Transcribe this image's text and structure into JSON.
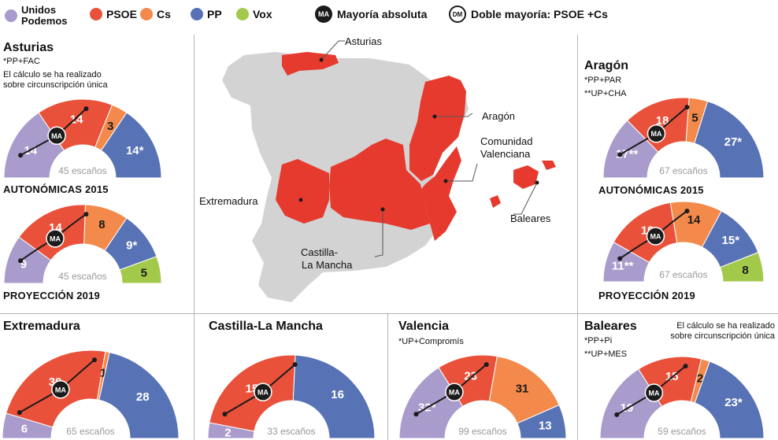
{
  "colors": {
    "up": "#a99bcc",
    "psoe": "#e9513a",
    "cs": "#f3894a",
    "pp": "#5873b5",
    "vox": "#a3c94b",
    "map_gray": "#d3d3d3",
    "map_red": "#e63a2e",
    "ma": "#1b1b1b"
  },
  "legend": {
    "items": [
      {
        "label": "Unidos\nPodemos",
        "color": "#a99bcc"
      },
      {
        "label": "PSOE",
        "color": "#e9513a"
      },
      {
        "label": "Cs",
        "color": "#f3894a"
      },
      {
        "label": "PP",
        "color": "#5873b5"
      },
      {
        "label": "Vox",
        "color": "#a3c94b"
      }
    ],
    "ma_badge": "MA",
    "ma_label": "Mayoría absoluta",
    "dm_badge": "DM",
    "dm_label": "Doble mayoría: PSOE +Cs"
  },
  "regions": {
    "asturias": {
      "title": "Asturias",
      "notes": [
        "*PP+FAC",
        "El cálculo se ha realizado",
        "sobre circunscripción única"
      ],
      "labels": [
        "AUTONÓMICAS 2015",
        "PROYECCIÓN 2019"
      ]
    },
    "aragon": {
      "title": "Aragón",
      "notes": [
        "*PP+PAR",
        "**UP+CHA"
      ],
      "labels": [
        "AUTONÓMICAS 2015",
        "PROYECCIÓN 2019"
      ]
    },
    "extremadura": {
      "title": "Extremadura"
    },
    "castilla": {
      "title": "Castilla-La Mancha"
    },
    "valencia": {
      "title": "Valencia",
      "notes": [
        "*UP+Compromís"
      ]
    },
    "baleares": {
      "title": "Baleares",
      "notes": [
        "*PP+Pi",
        "**UP+MES"
      ],
      "note_right": [
        "El cálculo se ha realizado",
        "sobre circunscripción única"
      ]
    }
  },
  "map_labels": {
    "asturias": "Asturias",
    "aragon": "Aragón",
    "valenciana": [
      "Comunidad",
      "Valenciana"
    ],
    "extremadura": "Extremadura",
    "baleares": "Baleares",
    "castilla": [
      "Castilla-",
      "La Mancha"
    ]
  },
  "chart_data": [
    {
      "type": "semicircle",
      "name": "Asturias Autonómicas 2015",
      "total_label": "45 escaños",
      "segments": [
        {
          "party": "UP",
          "value": 14,
          "label": "14"
        },
        {
          "party": "PSOE",
          "value": 14,
          "label": "14"
        },
        {
          "party": "Cs",
          "value": 3,
          "label": "3"
        },
        {
          "party": "PP",
          "value": 14,
          "label": "14*"
        }
      ],
      "ma": true
    },
    {
      "type": "semicircle",
      "name": "Asturias Proyección 2019",
      "total_label": "45 escaños",
      "segments": [
        {
          "party": "UP",
          "value": 9,
          "label": "9"
        },
        {
          "party": "PSOE",
          "value": 14,
          "label": "14"
        },
        {
          "party": "Cs",
          "value": 8,
          "label": "8"
        },
        {
          "party": "PP",
          "value": 9,
          "label": "9*"
        },
        {
          "party": "Vox",
          "value": 5,
          "label": "5"
        }
      ],
      "ma": true
    },
    {
      "type": "semicircle",
      "name": "Aragón Autonómicas 2015",
      "total_label": "67 escaños",
      "segments": [
        {
          "party": "UP",
          "value": 17,
          "label": "17**"
        },
        {
          "party": "PSOE",
          "value": 18,
          "label": "18"
        },
        {
          "party": "Cs",
          "value": 5,
          "label": "5"
        },
        {
          "party": "PP",
          "value": 27,
          "label": "27*"
        }
      ],
      "ma": true
    },
    {
      "type": "semicircle",
      "name": "Aragón Proyección 2019",
      "total_label": "67 escaños",
      "segments": [
        {
          "party": "UP",
          "value": 11,
          "label": "11**"
        },
        {
          "party": "PSOE",
          "value": 19,
          "label": "19"
        },
        {
          "party": "Cs",
          "value": 14,
          "label": "14"
        },
        {
          "party": "PP",
          "value": 15,
          "label": "15*"
        },
        {
          "party": "Vox",
          "value": 8,
          "label": "8"
        }
      ],
      "ma": true
    },
    {
      "type": "semicircle",
      "name": "Extremadura",
      "total_label": "65 escaños",
      "segments": [
        {
          "party": "UP",
          "value": 6,
          "label": "6"
        },
        {
          "party": "PSOE",
          "value": 30,
          "label": "30"
        },
        {
          "party": "Cs",
          "value": 1,
          "label": "1"
        },
        {
          "party": "PP",
          "value": 28,
          "label": "28"
        }
      ],
      "ma": true
    },
    {
      "type": "semicircle",
      "name": "Castilla-La Mancha",
      "total_label": "33 escaños",
      "segments": [
        {
          "party": "UP",
          "value": 2,
          "label": "2"
        },
        {
          "party": "PSOE",
          "value": 15,
          "label": "15"
        },
        {
          "party": "PP",
          "value": 16,
          "label": "16"
        }
      ],
      "ma": true
    },
    {
      "type": "semicircle",
      "name": "Valencia",
      "total_label": "99 escaños",
      "segments": [
        {
          "party": "UP",
          "value": 32,
          "label": "32*"
        },
        {
          "party": "PSOE",
          "value": 23,
          "label": "23"
        },
        {
          "party": "Cs",
          "value": 31,
          "label": "31"
        },
        {
          "party": "PP",
          "value": 13,
          "label": "13"
        }
      ],
      "ma": true
    },
    {
      "type": "semicircle",
      "name": "Baleares",
      "total_label": "59 escaños",
      "segments": [
        {
          "party": "UP",
          "value": 19,
          "label": "19"
        },
        {
          "party": "PSOE",
          "value": 15,
          "label": "15"
        },
        {
          "party": "Cs",
          "value": 2,
          "label": "2"
        },
        {
          "party": "PP",
          "value": 23,
          "label": "23*"
        }
      ],
      "ma": true
    }
  ]
}
